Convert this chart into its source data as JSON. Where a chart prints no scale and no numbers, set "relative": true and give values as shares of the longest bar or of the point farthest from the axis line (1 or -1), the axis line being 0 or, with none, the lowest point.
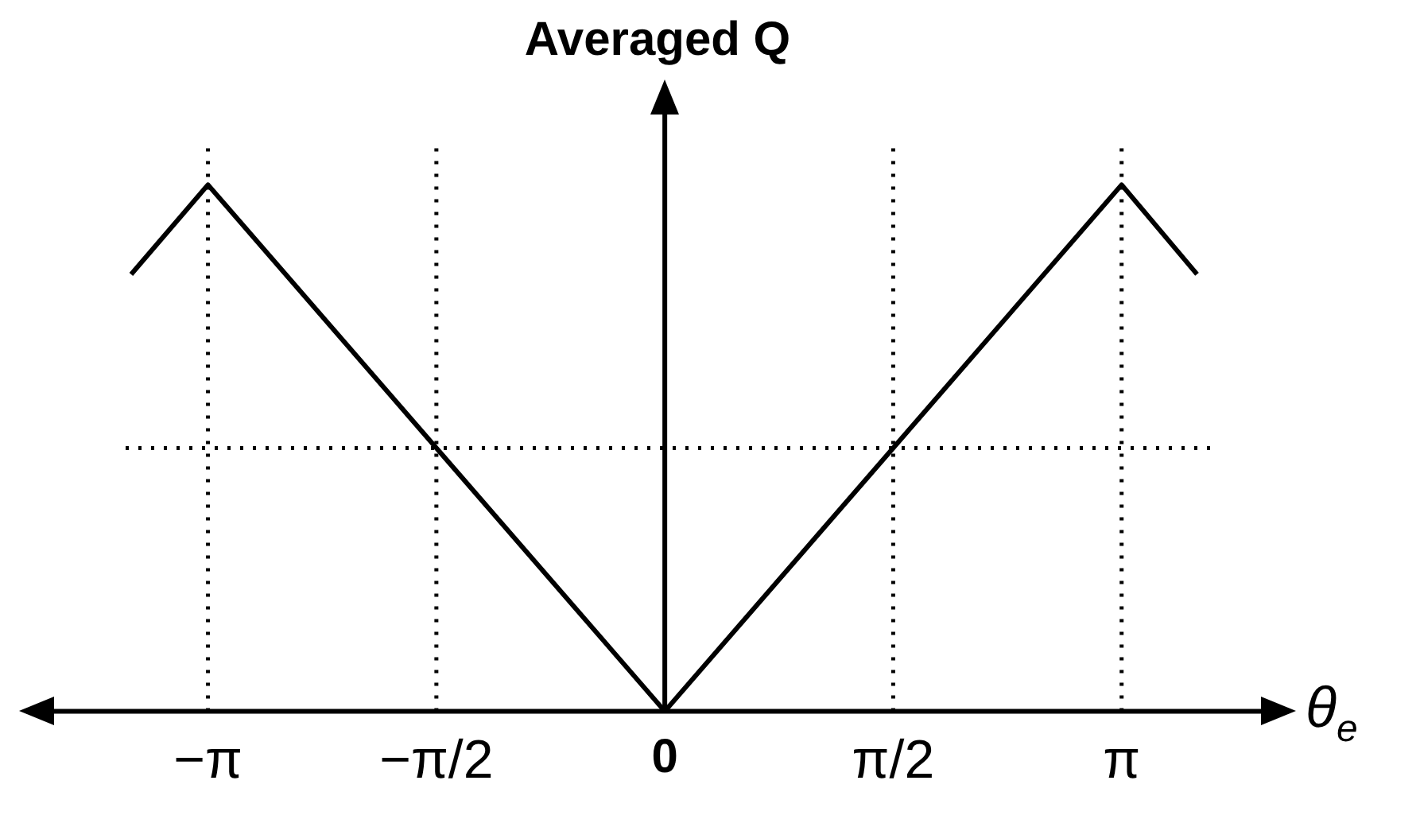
{
  "chart_data": {
    "type": "line",
    "title": "Averaged Q",
    "xlabel": "θ$_{e}$",
    "relative": true,
    "xlim": [
      -4.2,
      4.1
    ],
    "xticks": [
      {
        "value": -3.14159,
        "label": "−π"
      },
      {
        "value": -1.5708,
        "label": "−π/2"
      },
      {
        "value": 0,
        "label": "0"
      },
      {
        "value": 1.5708,
        "label": "π/2"
      },
      {
        "value": 3.14159,
        "label": "π"
      }
    ],
    "series": [
      {
        "color": "#000000",
        "x": [
          -3.67,
          -3.14159,
          0,
          3.14159,
          3.66
        ],
        "values": [
          0.83,
          1,
          0,
          1,
          0.83
        ]
      }
    ],
    "ref_lines": [
      {
        "axis": "x",
        "value": -3.14159,
        "line_style": "dotted"
      },
      {
        "axis": "x",
        "value": -1.5708,
        "line_style": "dotted"
      },
      {
        "axis": "x",
        "value": 1.5708,
        "line_style": "dotted"
      },
      {
        "axis": "x",
        "value": 3.14159,
        "line_style": "dotted"
      },
      {
        "axis": "y",
        "value": 0.5,
        "line_style": "dotted"
      }
    ],
    "marker": "none",
    "line_style": "solid",
    "grid": false,
    "legend": false
  }
}
